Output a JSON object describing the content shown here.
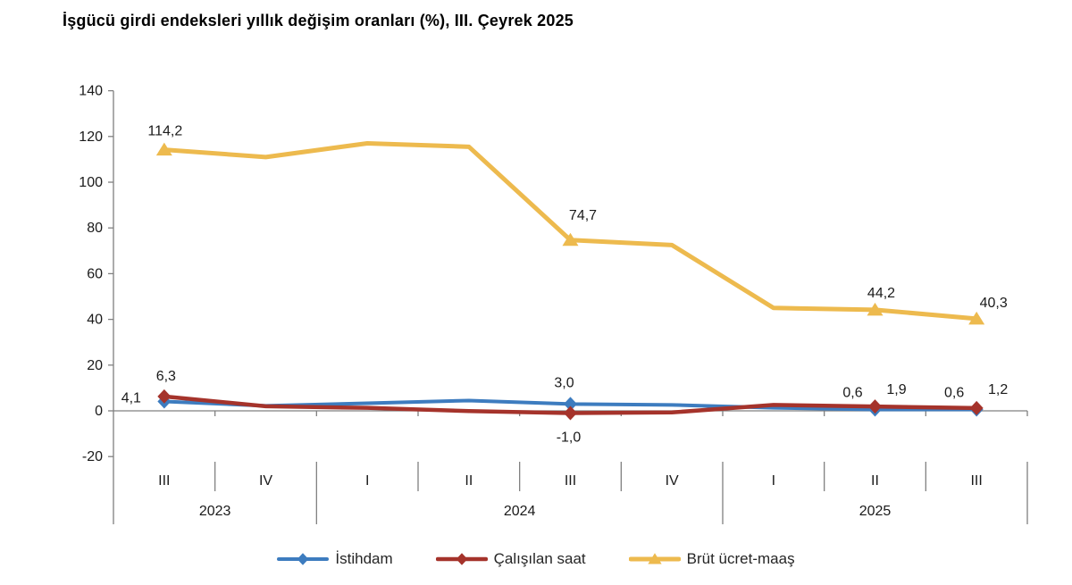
{
  "page": {
    "title": "İşgücü girdi endeksleri yıllık değişim oranları (%), III. Çeyrek 2025"
  },
  "chart_data": {
    "type": "line",
    "title": "İşgücü girdi endeksleri yıllık değişim oranları (%), III. Çeyrek 2025",
    "categories": [
      "III",
      "IV",
      "I",
      "II",
      "III",
      "IV",
      "I",
      "II",
      "III"
    ],
    "year_groups": [
      {
        "label": "2023",
        "count": 2
      },
      {
        "label": "2024",
        "count": 4
      },
      {
        "label": "2025",
        "count": 3
      }
    ],
    "ylim": [
      -20,
      140
    ],
    "ytick_step": 20,
    "grid": false,
    "legend_position": "bottom",
    "axis_color": "#808080",
    "text_color": "#1a1a1a",
    "series": [
      {
        "name": "İstihdam",
        "color": "#3D7CBF",
        "marker": "diamond",
        "line_width": 4,
        "values": [
          4.1,
          2.2,
          3.3,
          4.5,
          3.0,
          2.6,
          1.3,
          0.6,
          0.6
        ],
        "point_labels": [
          {
            "index": 0,
            "text": "4,1",
            "dx": -37,
            "dy": 1
          },
          {
            "index": 4,
            "text": "3,0",
            "dx": -7,
            "dy": -19
          },
          {
            "index": 7,
            "text": "0,6",
            "dx": -25,
            "dy": -14
          },
          {
            "index": 8,
            "text": "0,6",
            "dx": -25,
            "dy": -14
          }
        ]
      },
      {
        "name": "Çalışılan saat",
        "color": "#A5332B",
        "marker": "diamond",
        "line_width": 4.5,
        "values": [
          6.3,
          2.0,
          1.3,
          -0.1,
          -1.0,
          -0.7,
          2.6,
          1.9,
          1.2
        ],
        "point_labels": [
          {
            "index": 0,
            "text": "6,3",
            "dx": 2,
            "dy": -18
          },
          {
            "index": 4,
            "text": "-1,0",
            "dx": -2,
            "dy": 32
          },
          {
            "index": 7,
            "text": "1,9",
            "dx": 24,
            "dy": -14
          },
          {
            "index": 8,
            "text": "1,2",
            "dx": 24,
            "dy": -16
          }
        ]
      },
      {
        "name": "Brüt ücret-maaş",
        "color": "#EDBA4E",
        "marker": "triangle",
        "line_width": 5,
        "values": [
          114.2,
          111.0,
          117.0,
          115.5,
          74.7,
          72.5,
          45.0,
          44.2,
          40.3
        ],
        "point_labels": [
          {
            "index": 0,
            "text": "114,2",
            "dx": 1,
            "dy": -16
          },
          {
            "index": 4,
            "text": "74,7",
            "dx": 14,
            "dy": -23
          },
          {
            "index": 7,
            "text": "44,2",
            "dx": 7,
            "dy": -14
          },
          {
            "index": 8,
            "text": "40,3",
            "dx": 19,
            "dy": -13
          }
        ]
      }
    ]
  }
}
